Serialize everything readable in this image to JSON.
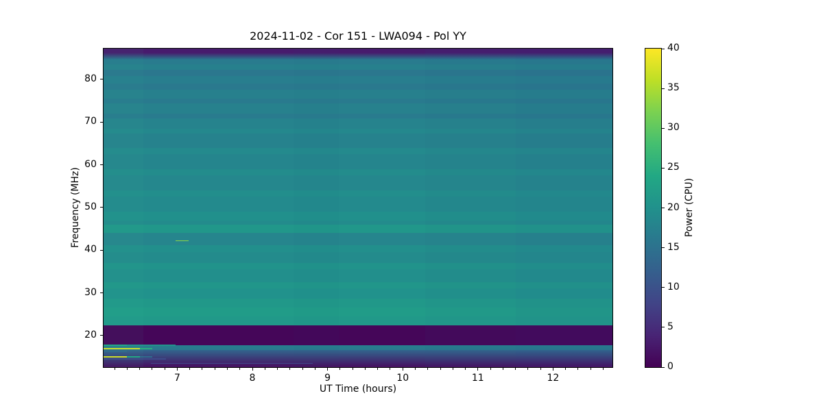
{
  "title": "2024-11-02 - Cor 151 - LWA094 - Pol YY",
  "axes": {
    "xlabel": "UT Time (hours)",
    "ylabel": "Frequency (MHz)",
    "x_range_hours": [
      6.02,
      12.79
    ],
    "y_range_mhz": [
      12.6,
      87.2
    ],
    "x_ticks": [
      7,
      8,
      9,
      10,
      11,
      12
    ],
    "x_minor_interval_hours": 0.166667,
    "y_ticks": [
      20,
      30,
      40,
      50,
      60,
      70,
      80
    ]
  },
  "colorbar": {
    "label": "Power (CPU)",
    "range": [
      0,
      40
    ],
    "ticks": [
      0,
      5,
      10,
      15,
      20,
      25,
      30,
      35,
      40
    ],
    "colormap": "viridis",
    "stops": [
      "#440154",
      "#482475",
      "#414487",
      "#355f8d",
      "#2a788e",
      "#21918c",
      "#22a884",
      "#44bf70",
      "#7ad151",
      "#bddf26",
      "#fde725"
    ]
  },
  "chart_data": {
    "type": "heatmap",
    "title": "2024-11-02 - Cor 151 - LWA094 - Pol YY",
    "xlabel": "UT Time (hours)",
    "ylabel": "Frequency (MHz)",
    "value_label": "Power (CPU)",
    "value_range": [
      0,
      40
    ],
    "x_range": [
      6.02,
      12.79
    ],
    "y_range": [
      12.6,
      87.2
    ],
    "bands": [
      {
        "f_hi": 87.2,
        "f_lo": 86.3,
        "p_hi": 3.0,
        "p_lo": 3.0
      },
      {
        "f_hi": 86.3,
        "f_lo": 84.7,
        "p_hi": 3.0,
        "p_lo": 16.0
      },
      {
        "f_hi": 84.7,
        "f_lo": 83.5,
        "p_hi": 16.5,
        "p_lo": 16.5
      },
      {
        "f_hi": 83.5,
        "f_lo": 82.2,
        "p_hi": 17.2,
        "p_lo": 17.2
      },
      {
        "f_hi": 82.2,
        "f_lo": 80.8,
        "p_hi": 15.8,
        "p_lo": 15.8
      },
      {
        "f_hi": 80.8,
        "f_lo": 79.0,
        "p_hi": 17.0,
        "p_lo": 17.0
      },
      {
        "f_hi": 79.0,
        "f_lo": 77.5,
        "p_hi": 16.2,
        "p_lo": 16.2
      },
      {
        "f_hi": 77.5,
        "f_lo": 75.5,
        "p_hi": 17.3,
        "p_lo": 17.3
      },
      {
        "f_hi": 75.5,
        "f_lo": 74.3,
        "p_hi": 16.4,
        "p_lo": 16.4
      },
      {
        "f_hi": 74.3,
        "f_lo": 72.0,
        "p_hi": 17.5,
        "p_lo": 17.5
      },
      {
        "f_hi": 72.0,
        "f_lo": 70.8,
        "p_hi": 16.5,
        "p_lo": 16.5
      },
      {
        "f_hi": 70.8,
        "f_lo": 68.5,
        "p_hi": 17.8,
        "p_lo": 17.8
      },
      {
        "f_hi": 68.5,
        "f_lo": 67.3,
        "p_hi": 18.5,
        "p_lo": 18.5
      },
      {
        "f_hi": 67.3,
        "f_lo": 64.0,
        "p_hi": 17.6,
        "p_lo": 17.6
      },
      {
        "f_hi": 64.0,
        "f_lo": 62.5,
        "p_hi": 18.8,
        "p_lo": 18.8
      },
      {
        "f_hi": 62.5,
        "f_lo": 59.0,
        "p_hi": 18.1,
        "p_lo": 18.1
      },
      {
        "f_hi": 59.0,
        "f_lo": 57.5,
        "p_hi": 19.2,
        "p_lo": 19.2
      },
      {
        "f_hi": 57.5,
        "f_lo": 54.0,
        "p_hi": 18.4,
        "p_lo": 18.4
      },
      {
        "f_hi": 54.0,
        "f_lo": 52.5,
        "p_hi": 19.5,
        "p_lo": 19.5
      },
      {
        "f_hi": 52.5,
        "f_lo": 49.0,
        "p_hi": 18.9,
        "p_lo": 18.9
      },
      {
        "f_hi": 49.0,
        "f_lo": 47.0,
        "p_hi": 19.8,
        "p_lo": 19.8
      },
      {
        "f_hi": 47.0,
        "f_lo": 45.9,
        "p_hi": 19.1,
        "p_lo": 19.1
      },
      {
        "f_hi": 45.9,
        "f_lo": 44.1,
        "p_hi": 21.0,
        "p_lo": 21.0
      },
      {
        "f_hi": 44.1,
        "f_lo": 41.2,
        "p_hi": 18.0,
        "p_lo": 18.0
      },
      {
        "f_hi": 41.2,
        "f_lo": 39.5,
        "p_hi": 19.6,
        "p_lo": 19.6
      },
      {
        "f_hi": 39.5,
        "f_lo": 37.0,
        "p_hi": 19.1,
        "p_lo": 19.1
      },
      {
        "f_hi": 37.0,
        "f_lo": 35.5,
        "p_hi": 20.3,
        "p_lo": 20.3
      },
      {
        "f_hi": 35.5,
        "f_lo": 32.5,
        "p_hi": 19.7,
        "p_lo": 19.7
      },
      {
        "f_hi": 32.5,
        "f_lo": 31.0,
        "p_hi": 20.8,
        "p_lo": 20.8
      },
      {
        "f_hi": 31.0,
        "f_lo": 28.7,
        "p_hi": 20.2,
        "p_lo": 20.2
      },
      {
        "f_hi": 28.7,
        "f_lo": 26.5,
        "p_hi": 21.3,
        "p_lo": 21.3
      },
      {
        "f_hi": 26.5,
        "f_lo": 24.5,
        "p_hi": 21.9,
        "p_lo": 21.9
      },
      {
        "f_hi": 24.5,
        "f_lo": 22.4,
        "p_hi": 21.4,
        "p_lo": 21.4
      },
      {
        "f_hi": 22.4,
        "f_lo": 17.8,
        "p_hi": 0.6,
        "p_lo": 0.6
      },
      {
        "f_hi": 17.8,
        "f_lo": 16.6,
        "p_hi": 17.0,
        "p_lo": 16.0
      },
      {
        "f_hi": 16.6,
        "f_lo": 12.6,
        "p_hi": 13.0,
        "p_lo": 1.5
      }
    ],
    "segments": [
      {
        "f_hi": 17.95,
        "f_lo": 17.55,
        "t0": 6.02,
        "t1": 6.33,
        "power": 24.0
      },
      {
        "f_hi": 17.95,
        "f_lo": 17.55,
        "t0": 6.33,
        "t1": 6.98,
        "power": 20.5
      },
      {
        "f_hi": 17.15,
        "f_lo": 16.8,
        "t0": 6.02,
        "t1": 6.5,
        "power": 37.5
      },
      {
        "f_hi": 17.15,
        "f_lo": 16.8,
        "t0": 6.5,
        "t1": 6.67,
        "power": 25.0
      },
      {
        "f_hi": 16.4,
        "f_lo": 16.05,
        "t0": 6.02,
        "t1": 6.33,
        "power": 13.5
      },
      {
        "f_hi": 15.15,
        "f_lo": 14.85,
        "t0": 6.02,
        "t1": 6.33,
        "power": 37.5
      },
      {
        "f_hi": 15.15,
        "f_lo": 14.85,
        "t0": 6.33,
        "t1": 6.5,
        "power": 24.0
      },
      {
        "f_hi": 15.15,
        "f_lo": 14.85,
        "t0": 6.5,
        "t1": 6.67,
        "power": 14.0
      },
      {
        "f_hi": 14.65,
        "f_lo": 14.35,
        "t0": 6.02,
        "t1": 6.85,
        "power": 9.0
      },
      {
        "f_hi": 13.6,
        "f_lo": 13.35,
        "t0": 6.65,
        "t1": 8.8,
        "power": 8.5
      },
      {
        "f_hi": 42.35,
        "f_lo": 42.05,
        "t0": 6.98,
        "t1": 7.15,
        "power": 33.0
      }
    ],
    "columns": [
      {
        "t0": 6.02,
        "t1": 6.55,
        "color": "#35c79f",
        "alpha": 0.05
      },
      {
        "t0": 8.55,
        "t1": 9.15,
        "color": "#2b5f8e",
        "alpha": 0.03
      },
      {
        "t0": 10.3,
        "t1": 11.5,
        "color": "#2b5f8e",
        "alpha": 0.05
      },
      {
        "t0": 11.5,
        "t1": 12.79,
        "color": "#2b4f8e",
        "alpha": 0.08
      }
    ]
  }
}
